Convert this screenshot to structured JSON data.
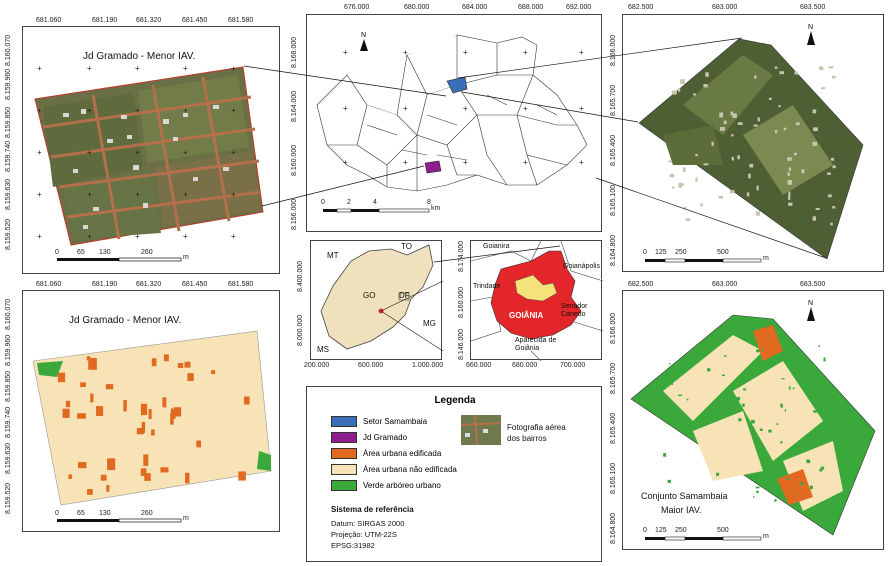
{
  "top_left": {
    "title": "Jd Gramado - Menor IAV.",
    "x_ticks": [
      "681.060",
      "681.190",
      "681.320",
      "681.450",
      "681.580"
    ],
    "y_ticks": [
      "8.160.070",
      "8.159.960",
      "8.159.850",
      "8.159.740",
      "8.159.630",
      "8.159.520"
    ],
    "scale": [
      "0",
      "65",
      "130",
      "260"
    ],
    "scale_unit": "m"
  },
  "bottom_left": {
    "title": "Jd Gramado - Menor IAV.",
    "x_ticks": [
      "681.060",
      "681.190",
      "681.320",
      "681.450",
      "681.580"
    ],
    "y_ticks": [
      "8.160.070",
      "8.159.960",
      "8.159.850",
      "8.159.740",
      "8.159.630",
      "8.159.520"
    ],
    "scale": [
      "0",
      "65",
      "130",
      "260"
    ],
    "scale_unit": "m"
  },
  "top_center": {
    "x_ticks": [
      "676.000",
      "680.000",
      "684.000",
      "688.000",
      "692.000"
    ],
    "y_ticks": [
      "8.168.000",
      "8.164.000",
      "8.160.000",
      "8.156.000"
    ],
    "scale": [
      "0",
      "2",
      "4",
      "8"
    ],
    "scale_unit": "km"
  },
  "state_map": {
    "labels": [
      "MT",
      "TO",
      "GO",
      "DF",
      "MG",
      "MS"
    ],
    "x_ticks": [
      "200.000",
      "600.000",
      "1.000.000"
    ],
    "y_ticks": [
      "8.400.000",
      "8.000.000"
    ]
  },
  "metro_map": {
    "labels": [
      "Goianira",
      "Goianápolis",
      "Trindade",
      "Senador Canedo",
      "GOIÂNIA",
      "Aparecida de Goiânia"
    ],
    "x_ticks": [
      "660.000",
      "680.000",
      "700.000"
    ],
    "y_ticks": [
      "8.174.000",
      "8.160.000",
      "8.146.000"
    ]
  },
  "top_right": {
    "x_ticks": [
      "682.500",
      "683.000",
      "683.500"
    ],
    "y_ticks": [
      "8.166.000",
      "8.165.700",
      "8.165.400",
      "8.165.100",
      "8.164.800"
    ],
    "scale": [
      "0",
      "125",
      "250",
      "500"
    ],
    "scale_unit": "m"
  },
  "bottom_right": {
    "title_line1": "Conjunto Samambaia",
    "title_line2": "Maior IAV.",
    "x_ticks": [
      "682.500",
      "683.000",
      "683.500"
    ],
    "y_ticks": [
      "8.166.000",
      "8.165.700",
      "8.165.400",
      "8.165.100",
      "8.164.800"
    ],
    "scale": [
      "0",
      "125",
      "250",
      "500"
    ],
    "scale_unit": "m"
  },
  "legend": {
    "title": "Legenda",
    "items": [
      {
        "label": "Setor Samambaia",
        "color": "#3a6fb7"
      },
      {
        "label": "Jd Gramado",
        "color": "#8e1f8c"
      },
      {
        "label": "Área urbana edificada",
        "color": "#e06a1f"
      },
      {
        "label": "Área urbana não edificada",
        "color": "#f7e3b6"
      },
      {
        "label": "Verde arbóreo urbano",
        "color": "#3aa83a"
      }
    ],
    "photo_label_1": "Fotografia aérea",
    "photo_label_2": "dos bairros",
    "ref_title": "Sistema de referência",
    "datum": "Datum: SIRGAS 2000",
    "projection": "Projeção: UTM-22S",
    "epsg": "EPSG:31982"
  },
  "colors": {
    "built": "#e06a1f",
    "unbuilt": "#f7e3b6",
    "green": "#3aa83a",
    "goiania": "#e3262a",
    "state": "#efe1bd",
    "photo_bg": "#6e7a4e"
  }
}
